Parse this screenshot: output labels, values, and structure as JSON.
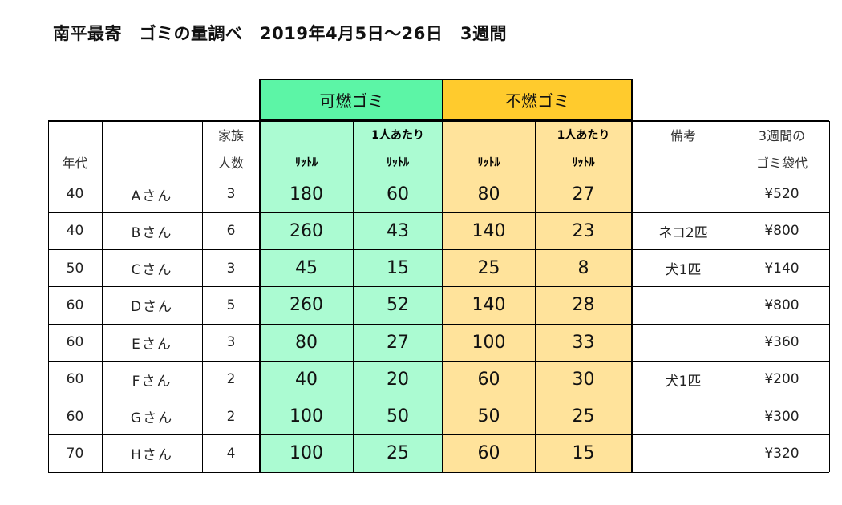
{
  "title": "南平最寄　ゴミの量調べ　2019年4月5日～26日　3週間",
  "groups": {
    "burnable": "可燃ゴミ",
    "nonburnable": "不燃ゴミ"
  },
  "headers": {
    "age": "年代",
    "family_top": "家族",
    "family_bottom": "人数",
    "liter": "ﾘｯﾄﾙ",
    "per_person": "1人あたり",
    "notes": "備考",
    "bag_top": "3週間の",
    "bag_bottom": "ゴミ袋代"
  },
  "rows": [
    {
      "age": "40",
      "name": "Aさん",
      "family": "3",
      "burn_l": "180",
      "burn_pp": "60",
      "nonburn_l": "80",
      "nonburn_pp": "27",
      "note": "",
      "bag": "¥520"
    },
    {
      "age": "40",
      "name": "Bさん",
      "family": "6",
      "burn_l": "260",
      "burn_pp": "43",
      "nonburn_l": "140",
      "nonburn_pp": "23",
      "note": "ネコ2匹",
      "bag": "¥800"
    },
    {
      "age": "50",
      "name": "Cさん",
      "family": "3",
      "burn_l": "45",
      "burn_pp": "15",
      "nonburn_l": "25",
      "nonburn_pp": "8",
      "note": "犬1匹",
      "bag": "¥140"
    },
    {
      "age": "60",
      "name": "Dさん",
      "family": "5",
      "burn_l": "260",
      "burn_pp": "52",
      "nonburn_l": "140",
      "nonburn_pp": "28",
      "note": "",
      "bag": "¥800"
    },
    {
      "age": "60",
      "name": "Eさん",
      "family": "3",
      "burn_l": "80",
      "burn_pp": "27",
      "nonburn_l": "100",
      "nonburn_pp": "33",
      "note": "",
      "bag": "¥360"
    },
    {
      "age": "60",
      "name": "Fさん",
      "family": "2",
      "burn_l": "40",
      "burn_pp": "20",
      "nonburn_l": "60",
      "nonburn_pp": "30",
      "note": "犬1匹",
      "bag": "¥200"
    },
    {
      "age": "60",
      "name": "Gさん",
      "family": "2",
      "burn_l": "100",
      "burn_pp": "50",
      "nonburn_l": "50",
      "nonburn_pp": "25",
      "note": "",
      "bag": "¥300"
    },
    {
      "age": "70",
      "name": "Hさん",
      "family": "4",
      "burn_l": "100",
      "burn_pp": "25",
      "nonburn_l": "60",
      "nonburn_pp": "15",
      "note": "",
      "bag": "¥320"
    }
  ]
}
